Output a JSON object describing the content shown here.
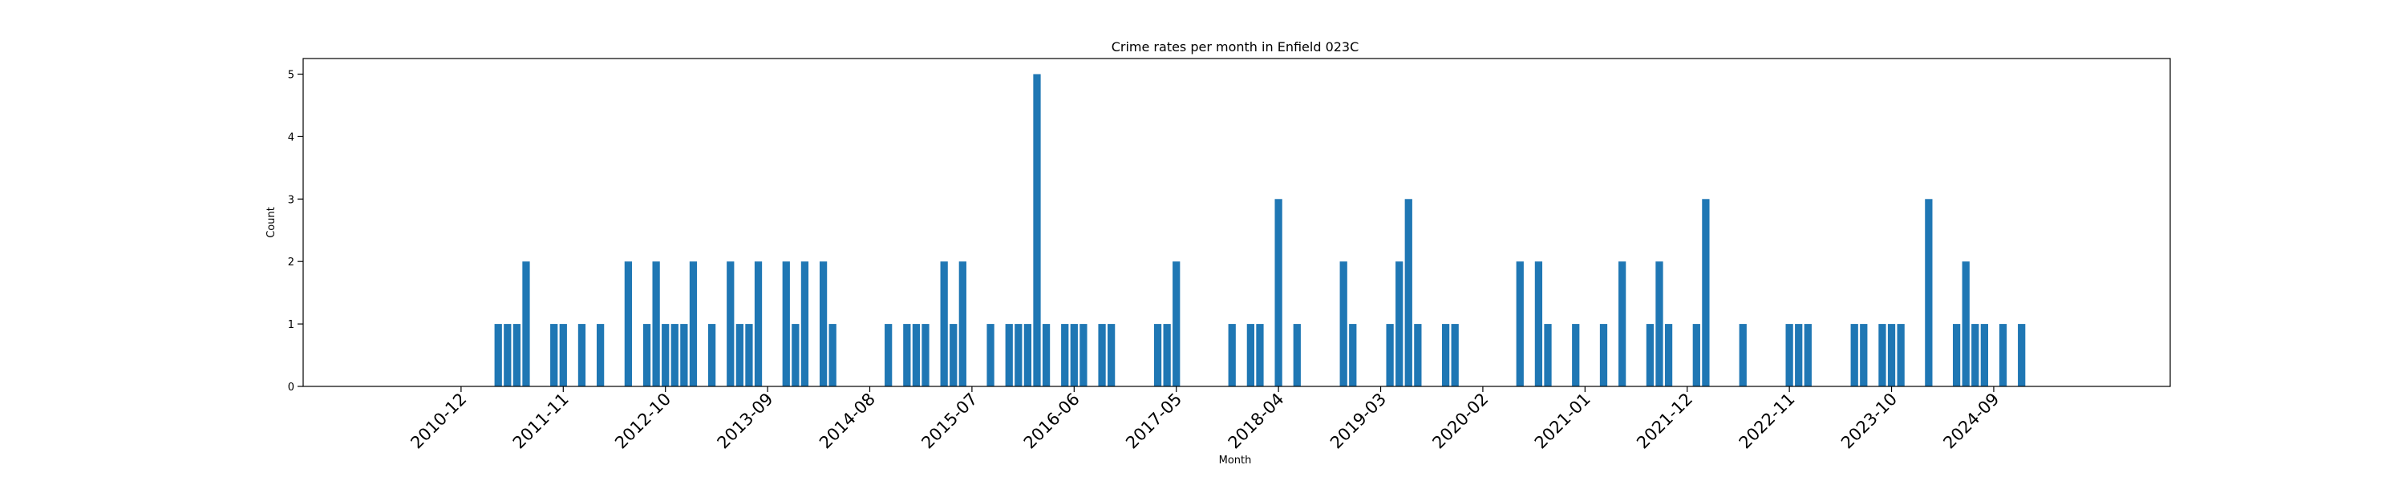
{
  "chart_data": {
    "type": "bar",
    "title": "Crime rates per month in Enfield 023C",
    "xlabel": "Month",
    "ylabel": "Count",
    "ylim": [
      0,
      5.25
    ],
    "yticks": [
      0,
      1,
      2,
      3,
      4,
      5
    ],
    "xticks": [
      "2010-12",
      "2011-11",
      "2012-10",
      "2013-09",
      "2014-08",
      "2015-07",
      "2016-06",
      "2017-05",
      "2018-04",
      "2019-03",
      "2020-02",
      "2021-01",
      "2021-12",
      "2022-11",
      "2023-10",
      "2024-09"
    ],
    "grid": false,
    "color": "#1f77b4",
    "data": [
      [
        "2011-04",
        1
      ],
      [
        "2011-05",
        1
      ],
      [
        "2011-06",
        1
      ],
      [
        "2011-07",
        2
      ],
      [
        "2011-10",
        1
      ],
      [
        "2011-11",
        1
      ],
      [
        "2012-01",
        1
      ],
      [
        "2012-03",
        1
      ],
      [
        "2012-06",
        2
      ],
      [
        "2012-08",
        1
      ],
      [
        "2012-09",
        2
      ],
      [
        "2012-10",
        1
      ],
      [
        "2012-11",
        1
      ],
      [
        "2012-12",
        1
      ],
      [
        "2013-01",
        2
      ],
      [
        "2013-03",
        1
      ],
      [
        "2013-05",
        2
      ],
      [
        "2013-06",
        1
      ],
      [
        "2013-07",
        1
      ],
      [
        "2013-08",
        2
      ],
      [
        "2013-11",
        2
      ],
      [
        "2013-12",
        1
      ],
      [
        "2014-01",
        2
      ],
      [
        "2014-03",
        2
      ],
      [
        "2014-04",
        1
      ],
      [
        "2014-10",
        1
      ],
      [
        "2014-12",
        1
      ],
      [
        "2015-01",
        1
      ],
      [
        "2015-02",
        1
      ],
      [
        "2015-04",
        2
      ],
      [
        "2015-05",
        1
      ],
      [
        "2015-06",
        2
      ],
      [
        "2015-09",
        1
      ],
      [
        "2015-11",
        1
      ],
      [
        "2015-12",
        1
      ],
      [
        "2016-01",
        1
      ],
      [
        "2016-02",
        5
      ],
      [
        "2016-03",
        1
      ],
      [
        "2016-05",
        1
      ],
      [
        "2016-06",
        1
      ],
      [
        "2016-07",
        1
      ],
      [
        "2016-09",
        1
      ],
      [
        "2016-10",
        1
      ],
      [
        "2017-03",
        1
      ],
      [
        "2017-04",
        1
      ],
      [
        "2017-05",
        2
      ],
      [
        "2017-11",
        1
      ],
      [
        "2018-01",
        1
      ],
      [
        "2018-02",
        1
      ],
      [
        "2018-04",
        3
      ],
      [
        "2018-06",
        1
      ],
      [
        "2018-11",
        2
      ],
      [
        "2018-12",
        1
      ],
      [
        "2019-04",
        1
      ],
      [
        "2019-05",
        2
      ],
      [
        "2019-06",
        3
      ],
      [
        "2019-07",
        1
      ],
      [
        "2019-10",
        1
      ],
      [
        "2019-11",
        1
      ],
      [
        "2020-06",
        2
      ],
      [
        "2020-08",
        2
      ],
      [
        "2020-09",
        1
      ],
      [
        "2020-12",
        1
      ],
      [
        "2021-03",
        1
      ],
      [
        "2021-05",
        2
      ],
      [
        "2021-08",
        1
      ],
      [
        "2021-09",
        2
      ],
      [
        "2021-10",
        1
      ],
      [
        "2022-01",
        1
      ],
      [
        "2022-02",
        3
      ],
      [
        "2022-06",
        1
      ],
      [
        "2022-11",
        1
      ],
      [
        "2022-12",
        1
      ],
      [
        "2023-01",
        1
      ],
      [
        "2023-06",
        1
      ],
      [
        "2023-07",
        1
      ],
      [
        "2023-09",
        1
      ],
      [
        "2023-10",
        1
      ],
      [
        "2023-11",
        1
      ],
      [
        "2024-02",
        3
      ],
      [
        "2024-05",
        1
      ],
      [
        "2024-06",
        2
      ],
      [
        "2024-07",
        1
      ],
      [
        "2024-08",
        1
      ],
      [
        "2024-10",
        1
      ],
      [
        "2024-12",
        1
      ]
    ]
  }
}
